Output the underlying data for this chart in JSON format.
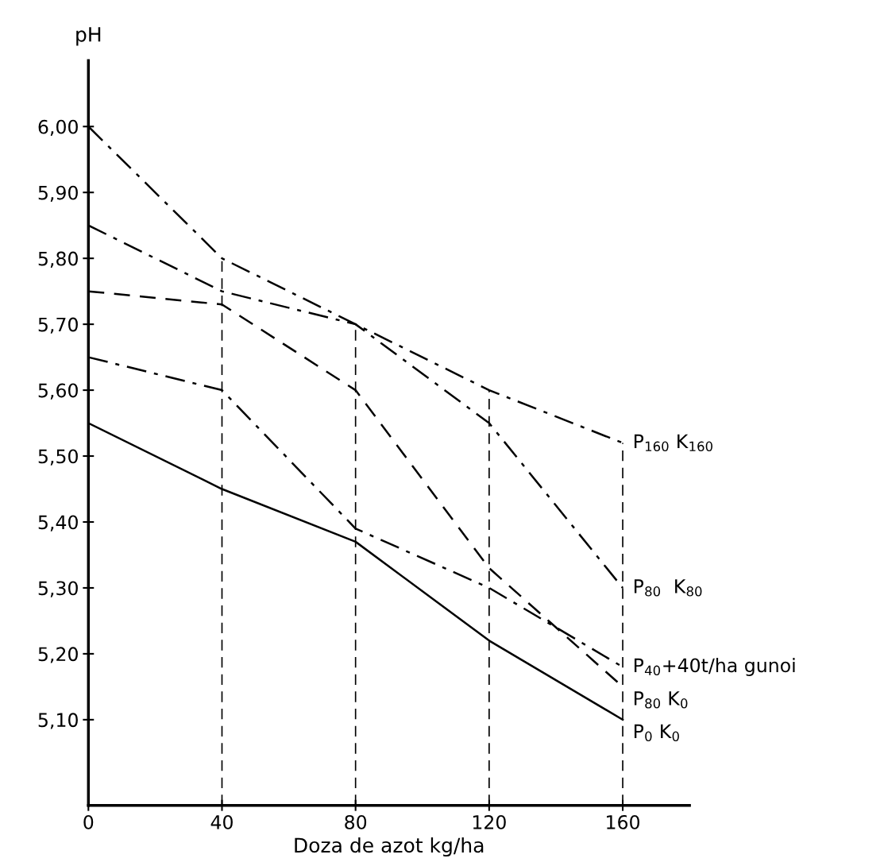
{
  "chart_data": {
    "type": "line",
    "ylabel": "pH",
    "xlabel": "Doza de azot kg/ha",
    "x": [
      0,
      40,
      80,
      120,
      160
    ],
    "xlim": [
      0,
      180
    ],
    "xticks": [
      0,
      40,
      80,
      120,
      160
    ],
    "ylim": [
      4.97,
      6.1
    ],
    "yticks": [
      {
        "value": 5.1,
        "label": "5,10"
      },
      {
        "value": 5.2,
        "label": "5,20"
      },
      {
        "value": 5.3,
        "label": "5,30"
      },
      {
        "value": 5.4,
        "label": "5,40"
      },
      {
        "value": 5.5,
        "label": "5,50"
      },
      {
        "value": 5.6,
        "label": "5,60"
      },
      {
        "value": 5.7,
        "label": "5,70"
      },
      {
        "value": 5.8,
        "label": "5,80"
      },
      {
        "value": 5.9,
        "label": "5,90"
      },
      {
        "value": 6.0,
        "label": "6,00"
      }
    ],
    "grid": false,
    "legend": false,
    "ref_lines": [
      {
        "axis": "x",
        "value": 40,
        "line_style": "dashed",
        "color": "#000000"
      },
      {
        "axis": "x",
        "value": 80,
        "line_style": "dashed",
        "color": "#000000"
      },
      {
        "axis": "x",
        "value": 120,
        "line_style": "dashed",
        "color": "#000000"
      },
      {
        "axis": "x",
        "value": 160,
        "line_style": "dashed",
        "color": "#000000"
      }
    ],
    "series": [
      {
        "name": "P$_{160}$ K$_{160}$",
        "color": "#000000",
        "line_style": "dashdot",
        "values": [
          6.0,
          5.8,
          5.7,
          5.6,
          5.52
        ]
      },
      {
        "name": "P$_{80}$  K$_{80}$",
        "color": "#000000",
        "line_style": "dashdot",
        "values": [
          5.85,
          5.75,
          5.7,
          5.55,
          5.3
        ]
      },
      {
        "name": "P$_{40}$+40t/ha gunoi",
        "color": "#000000",
        "line_style": "dashdot",
        "values": [
          5.65,
          5.6,
          5.39,
          5.3,
          5.18
        ]
      },
      {
        "name": "P$_{80}$ K$_{0}$",
        "color": "#000000",
        "line_style": "dashed",
        "values": [
          5.75,
          5.73,
          5.6,
          5.33,
          5.15
        ]
      },
      {
        "name": "P$_{0}$ K$_{0}$",
        "color": "#000000",
        "line_style": "solid",
        "values": [
          5.55,
          5.45,
          5.37,
          5.22,
          5.1
        ]
      }
    ]
  }
}
